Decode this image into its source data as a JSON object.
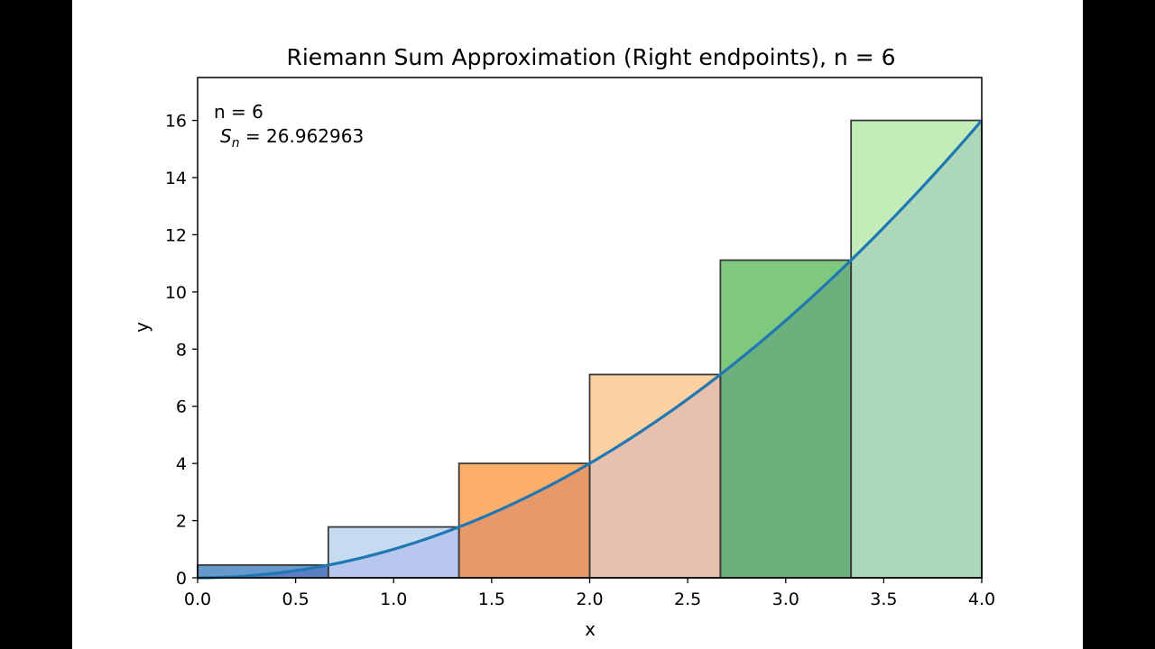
{
  "chart_data": {
    "type": "bar",
    "title": "Riemann Sum Approximation (Right endpoints), n = 6",
    "xlabel": "x",
    "ylabel": "y",
    "xlim": [
      0.0,
      4.0
    ],
    "ylim": [
      0,
      17.5
    ],
    "xticks": [
      0.0,
      0.5,
      1.0,
      1.5,
      2.0,
      2.5,
      3.0,
      3.5,
      4.0
    ],
    "xtick_labels": [
      "0.0",
      "0.5",
      "1.0",
      "1.5",
      "2.0",
      "2.5",
      "3.0",
      "3.5",
      "4.0"
    ],
    "yticks": [
      0,
      2,
      4,
      6,
      8,
      10,
      12,
      14,
      16
    ],
    "ytick_labels": [
      "0",
      "2",
      "4",
      "6",
      "8",
      "10",
      "12",
      "14",
      "16"
    ],
    "grid": false,
    "rectangles": [
      {
        "x0": 0.0,
        "x1": 0.6667,
        "height": 0.4444,
        "color": "#6699cc"
      },
      {
        "x0": 0.6667,
        "x1": 1.3333,
        "height": 1.7778,
        "color": "#c6dbef"
      },
      {
        "x0": 1.3333,
        "x1": 2.0,
        "height": 4.0,
        "color": "#fdae6b"
      },
      {
        "x0": 2.0,
        "x1": 2.6667,
        "height": 7.1111,
        "color": "#fdd0a2"
      },
      {
        "x0": 2.6667,
        "x1": 3.3333,
        "height": 11.1111,
        "color": "#7fc97f"
      },
      {
        "x0": 3.3333,
        "x1": 4.0,
        "height": 16.0,
        "color": "#c2edb9"
      }
    ],
    "under_curve_colors": [
      "#5a7fc4",
      "#b7c7ee",
      "#e8996a",
      "#e8c1ae",
      "#6db07d",
      "#acd8b9"
    ],
    "curve": {
      "function": "x^2",
      "color": "#1f77b4"
    },
    "annotation": {
      "line1": "n = 6",
      "sn_symbol": "S",
      "sn_subscript": "n",
      "sn_value": " = 26.962963"
    }
  }
}
